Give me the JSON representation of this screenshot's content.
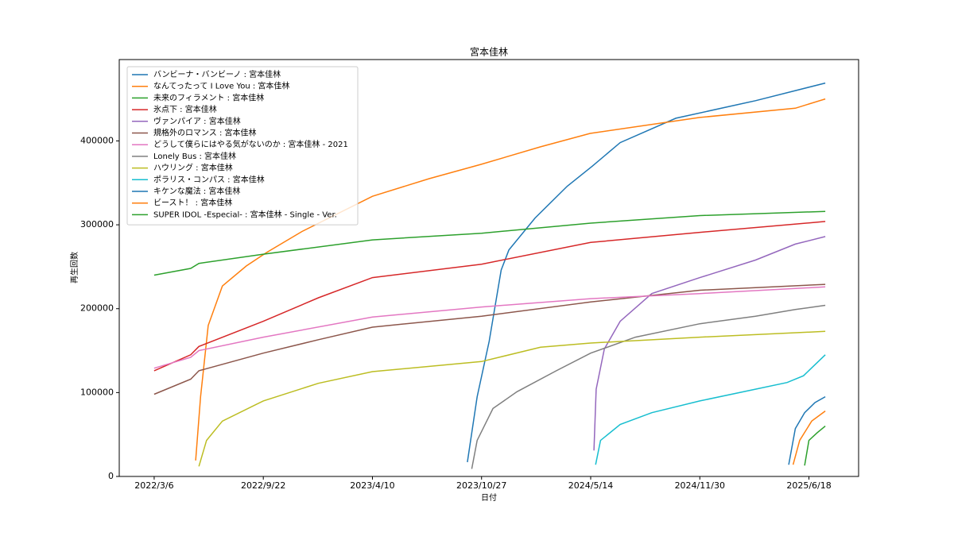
{
  "chart_data": {
    "type": "line",
    "title": "宮本佳林",
    "xlabel": "日付",
    "ylabel": "再生回数",
    "xlim": [
      "2022-01-01",
      "2025-09-17"
    ],
    "ylim": [
      0,
      497000
    ],
    "xticks": [
      {
        "value": "2022-03-06",
        "label": "2022/3/6"
      },
      {
        "value": "2022-09-22",
        "label": "2022/9/22"
      },
      {
        "value": "2023-04-10",
        "label": "2023/4/10"
      },
      {
        "value": "2023-10-27",
        "label": "2023/10/27"
      },
      {
        "value": "2024-05-14",
        "label": "2024/5/14"
      },
      {
        "value": "2024-11-30",
        "label": "2024/11/30"
      },
      {
        "value": "2025-06-18",
        "label": "2025/6/18"
      }
    ],
    "yticks": [
      0,
      100000,
      200000,
      300000,
      400000
    ],
    "legend": "upper left",
    "series": [
      {
        "name": "バンビーナ・バンビーノ : 宮本佳林",
        "color": "#1f77b4",
        "x": [
          "2023-10-01",
          "2023-10-19",
          "2023-11-10",
          "2023-12-02",
          "2023-12-16",
          "2024-02-02",
          "2024-04-01",
          "2024-05-17",
          "2024-07-07",
          "2024-10-17",
          "2025-03-12",
          "2025-07-18"
        ],
        "values": [
          17000,
          95000,
          161000,
          246000,
          270000,
          308000,
          346000,
          370000,
          398000,
          427000,
          448000,
          469000
        ]
      },
      {
        "name": "なんてったって I Love You : 宮本佳林",
        "color": "#ff7f0e",
        "x": [
          "2022-05-21",
          "2022-05-30",
          "2022-06-13",
          "2022-07-09",
          "2022-08-22",
          "2022-09-28",
          "2022-12-02",
          "2023-04-10",
          "2023-07-23",
          "2023-10-26",
          "2024-02-12",
          "2024-05-13",
          "2024-11-30",
          "2025-05-24",
          "2025-07-18"
        ],
        "values": [
          19000,
          95000,
          180000,
          227000,
          251000,
          267000,
          292000,
          334000,
          355000,
          372000,
          393000,
          409000,
          428000,
          439000,
          450000
        ]
      },
      {
        "name": "未来のフィラメント : 宮本佳林",
        "color": "#2ca02c",
        "x": [
          "2022-03-06",
          "2022-05-12",
          "2022-05-27",
          "2022-09-22",
          "2023-04-10",
          "2023-10-27",
          "2024-05-14",
          "2024-11-30",
          "2025-07-18"
        ],
        "values": [
          240000,
          248000,
          254000,
          265000,
          282000,
          290000,
          302000,
          311000,
          316000
        ]
      },
      {
        "name": "氷点下 : 宮本佳林",
        "color": "#d62728",
        "x": [
          "2022-03-06",
          "2022-05-12",
          "2022-05-27",
          "2022-09-22",
          "2023-01-01",
          "2023-04-10",
          "2023-10-27",
          "2024-05-14",
          "2024-11-30",
          "2025-07-18"
        ],
        "values": [
          126000,
          145000,
          155000,
          185000,
          213000,
          237000,
          253000,
          279000,
          291000,
          304000
        ]
      },
      {
        "name": "ヴァンパイア : 宮本佳林",
        "color": "#9467bd",
        "x": [
          "2024-05-20",
          "2024-05-24",
          "2024-06-08",
          "2024-07-07",
          "2024-09-03",
          "2024-11-30",
          "2025-03-12",
          "2025-05-24",
          "2025-07-18"
        ],
        "values": [
          31000,
          104000,
          152000,
          185000,
          218000,
          237000,
          258000,
          277000,
          286000
        ]
      },
      {
        "name": "規格外のロマンス : 宮本佳林",
        "color": "#8c564b",
        "x": [
          "2022-03-06",
          "2022-05-12",
          "2022-05-27",
          "2022-09-22",
          "2023-01-01",
          "2023-04-10",
          "2023-10-27",
          "2024-05-14",
          "2024-11-30",
          "2025-07-18"
        ],
        "values": [
          98000,
          116000,
          126000,
          147000,
          163000,
          178000,
          191000,
          208000,
          222000,
          229000
        ]
      },
      {
        "name": "どうして僕らにはやる気がないのか : 宮本佳林 - 2021",
        "color": "#e377c2",
        "x": [
          "2022-03-06",
          "2022-05-12",
          "2022-05-27",
          "2022-09-22",
          "2023-04-10",
          "2023-10-27",
          "2024-05-14",
          "2024-11-30",
          "2025-07-18"
        ],
        "values": [
          129000,
          142000,
          150000,
          166000,
          190000,
          202000,
          212000,
          218000,
          226000
        ]
      },
      {
        "name": "Lonely Bus : 宮本佳林",
        "color": "#7f7f7f",
        "x": [
          "2023-10-09",
          "2023-10-19",
          "2023-11-17",
          "2023-12-31",
          "2024-03-12",
          "2024-05-14",
          "2024-08-04",
          "2024-11-30",
          "2025-03-12",
          "2025-05-24",
          "2025-07-18"
        ],
        "values": [
          9000,
          43000,
          81000,
          101000,
          126000,
          147000,
          166000,
          182000,
          191000,
          199000,
          204000
        ]
      },
      {
        "name": "ハウリング : 宮本佳林",
        "color": "#bcbd22",
        "x": [
          "2022-05-27",
          "2022-06-10",
          "2022-07-09",
          "2022-09-22",
          "2023-01-01",
          "2023-04-10",
          "2023-10-27",
          "2024-02-12",
          "2024-05-14",
          "2024-11-30",
          "2025-07-18"
        ],
        "values": [
          12000,
          43000,
          66000,
          90000,
          111000,
          125000,
          137000,
          154000,
          159000,
          166000,
          173000
        ]
      },
      {
        "name": "ポラリス・コンパス : 宮本佳林",
        "color": "#17becf",
        "x": [
          "2024-05-23",
          "2024-06-01",
          "2024-07-07",
          "2024-09-03",
          "2024-11-30",
          "2025-03-12",
          "2025-05-09",
          "2025-06-08",
          "2025-07-18"
        ],
        "values": [
          14000,
          43000,
          62000,
          76000,
          90000,
          104000,
          112000,
          120000,
          145000
        ]
      },
      {
        "name": "キケンな魔法 : 宮本佳林",
        "color": "#1f77b4",
        "x": [
          "2025-05-12",
          "2025-05-24",
          "2025-06-10",
          "2025-06-29",
          "2025-07-18"
        ],
        "values": [
          14000,
          57000,
          76000,
          88000,
          95000
        ]
      },
      {
        "name": "ビースト！ : 宮本佳林",
        "color": "#ff7f0e",
        "x": [
          "2025-05-20",
          "2025-06-01",
          "2025-06-23",
          "2025-07-18"
        ],
        "values": [
          14000,
          43000,
          66000,
          78000
        ]
      },
      {
        "name": "SUPER IDOL -Especial- : 宮本佳林 - Single - Ver.",
        "color": "#2ca02c",
        "x": [
          "2025-06-10",
          "2025-06-18",
          "2025-07-03",
          "2025-07-18"
        ],
        "values": [
          13000,
          43000,
          52000,
          60000
        ]
      }
    ]
  }
}
